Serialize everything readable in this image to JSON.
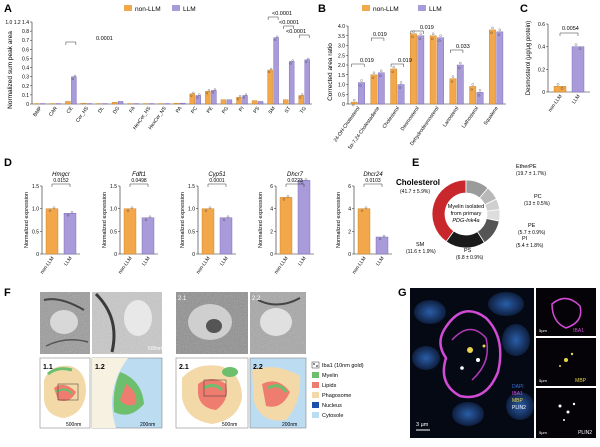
{
  "colors": {
    "nonllm": "#f2a74a",
    "llm": "#a99bd9",
    "nonllm_edge": "#c67a1c",
    "llm_edge": "#6f5fb3"
  },
  "panelA": {
    "letter": "A",
    "legend": [
      "non-LLM",
      "LLM"
    ],
    "ylabel": "Normalized sum peak area",
    "yticks": [
      "0",
      "0.1",
      "0.2",
      "0.3",
      "0.4",
      "0.5",
      "0.6",
      "0.7",
      "0.8",
      "1.0 1.2 1.4"
    ],
    "annotations": [
      "0.0001",
      "<0.0001",
      "<0.0001",
      "<0.0001"
    ],
    "chart_data": {
      "type": "bar",
      "categories": [
        "BMP",
        "CAR",
        "CE",
        "Cer_HS",
        "DL",
        "DG",
        "FA",
        "HexCer_HS",
        "HexCer_NS",
        "PA",
        "PC",
        "PE",
        "PG",
        "PI",
        "PS",
        "SM",
        "ST",
        "TG"
      ],
      "series": [
        {
          "name": "non-LLM",
          "values": [
            0.005,
            0.005,
            0.03,
            0.01,
            0.005,
            0.02,
            0.005,
            0.005,
            0.005,
            0.01,
            0.12,
            0.15,
            0.05,
            0.08,
            0.04,
            0.4,
            0.05,
            0.1
          ]
        },
        {
          "name": "LLM",
          "values": [
            0.005,
            0.005,
            0.32,
            0.005,
            0.005,
            0.03,
            0.005,
            0.005,
            0.005,
            0.01,
            0.1,
            0.16,
            0.05,
            0.1,
            0.03,
            0.78,
            0.5,
            0.52
          ]
        }
      ]
    }
  },
  "panelB": {
    "letter": "B",
    "legend": [
      "non-LLM",
      "LLM"
    ],
    "ylabel": "Corrected area ratio",
    "yticks": [
      "0",
      "0.5",
      "1.0",
      "1.5",
      "2.0",
      "2.5",
      "3.0",
      "3.5",
      "4.0"
    ],
    "annotations": [
      "0.019",
      "0.019",
      "0.019",
      "0.019",
      "0.033"
    ],
    "chart_data": {
      "type": "bar",
      "categories": [
        "24-OH-Cholesterol",
        "5α-7,24-Cholestadiene",
        "Cholesterol",
        "Desmosterol",
        "Dehydrodesmosterol",
        "Lanosterol",
        "Lathosterol",
        "Squalene"
      ],
      "series": [
        {
          "name": "non-LLM",
          "values": [
            0.1,
            1.5,
            1.8,
            3.6,
            3.5,
            1.3,
            0.9,
            3.8
          ]
        },
        {
          "name": "LLM",
          "values": [
            1.1,
            1.6,
            1.0,
            3.5,
            3.4,
            2.0,
            0.6,
            3.7
          ]
        }
      ]
    }
  },
  "panelC": {
    "letter": "C",
    "ylabel": "Desmosterol (µg/μg protein)",
    "yticks": [
      "0",
      "0.2",
      "0.4",
      "0.6"
    ],
    "annotation": "0.0054",
    "chart_data": {
      "type": "bar",
      "categories": [
        "non-LLM",
        "LLM"
      ],
      "values": [
        0.05,
        0.4
      ]
    }
  },
  "panelD": {
    "letter": "D",
    "ylabel": "Normalized expression",
    "charts": [
      {
        "title": "Hmgcr",
        "p": "0.0152",
        "yticks": [
          "0",
          "0.5",
          "1.0",
          "1.5"
        ],
        "values": [
          1.0,
          0.9
        ]
      },
      {
        "title": "Fdft1",
        "p": "0.0498",
        "yticks": [
          "0",
          "0.5",
          "1.0",
          "1.5"
        ],
        "values": [
          1.0,
          0.8
        ]
      },
      {
        "title": "Cyp51",
        "p": "0.0001",
        "yticks": [
          "0",
          "0.5",
          "1.0",
          "1.5"
        ],
        "values": [
          1.0,
          0.8
        ]
      },
      {
        "title": "Dhcr7",
        "p": "0.0223",
        "yticks": [
          "0",
          "2",
          "4",
          "6"
        ],
        "values": [
          5,
          6.5
        ]
      },
      {
        "title": "Dhcr24",
        "p": "0.0103",
        "yticks": [
          "0",
          "2",
          "4",
          "6"
        ],
        "values": [
          4,
          1.5
        ]
      }
    ],
    "xlabels": [
      "non-LLM",
      "LLM"
    ]
  },
  "panelE": {
    "letter": "E",
    "center": [
      "Myelin isolated",
      "from primary",
      "PDG-Ink4a"
    ],
    "chart_data": {
      "type": "pie",
      "slices": [
        {
          "name": "Cholesterol",
          "label": "(41.7 ± 5.9%)",
          "value": 41.7,
          "color": "#c8282c"
        },
        {
          "name": "SM",
          "label": "(11.6 ± 1.9%)",
          "value": 11.6,
          "color": "#9b9b9b"
        },
        {
          "name": "PS",
          "label": "(6.8 ± 0.9%)",
          "value": 6.8,
          "color": "#b8b8b8"
        },
        {
          "name": "PI",
          "label": "(5.4 ± 1.8%)",
          "value": 5.4,
          "color": "#cfcfcf"
        },
        {
          "name": "PE",
          "label": "(5.7 ± 0.9%)",
          "value": 5.7,
          "color": "#dddddd"
        },
        {
          "name": "PC",
          "label": "(13 ± 0.5%)",
          "value": 13,
          "color": "#555555"
        },
        {
          "name": "EtherPE",
          "label": "(19.7 ± 1.7%)",
          "value": 19.7,
          "color": "#1a1a1a"
        }
      ]
    }
  },
  "panelF": {
    "letter": "F",
    "tiles": [
      "1.1",
      "1.2",
      "2.1",
      "2.2"
    ],
    "scales": [
      "500nm",
      "200nm",
      "500nm",
      "200nm"
    ],
    "legend": [
      {
        "label": "Iba1 (10nm gold)",
        "color": "#ffffff"
      },
      {
        "label": "Myelin",
        "color": "#6dbf6d"
      },
      {
        "label": "Lipids",
        "color": "#ef7d6f"
      },
      {
        "label": "Phagosome",
        "color": "#f3d9a8"
      },
      {
        "label": "Nucleus",
        "color": "#1f4fa8"
      },
      {
        "label": "Cytosole",
        "color": "#bcdcf2"
      }
    ],
    "em_scale": "500nm"
  },
  "panelG": {
    "letter": "G",
    "scale": "3 µm",
    "side": [
      "IBA1",
      "MBP",
      "PLIN2"
    ],
    "side_scale": "5µm",
    "legend": [
      "DAPI",
      "IBA1",
      "MBP",
      "PLIN2"
    ],
    "legend_colors": [
      "#3b6fd6",
      "#d24bd6",
      "#e6d64b",
      "#ffffff"
    ]
  }
}
